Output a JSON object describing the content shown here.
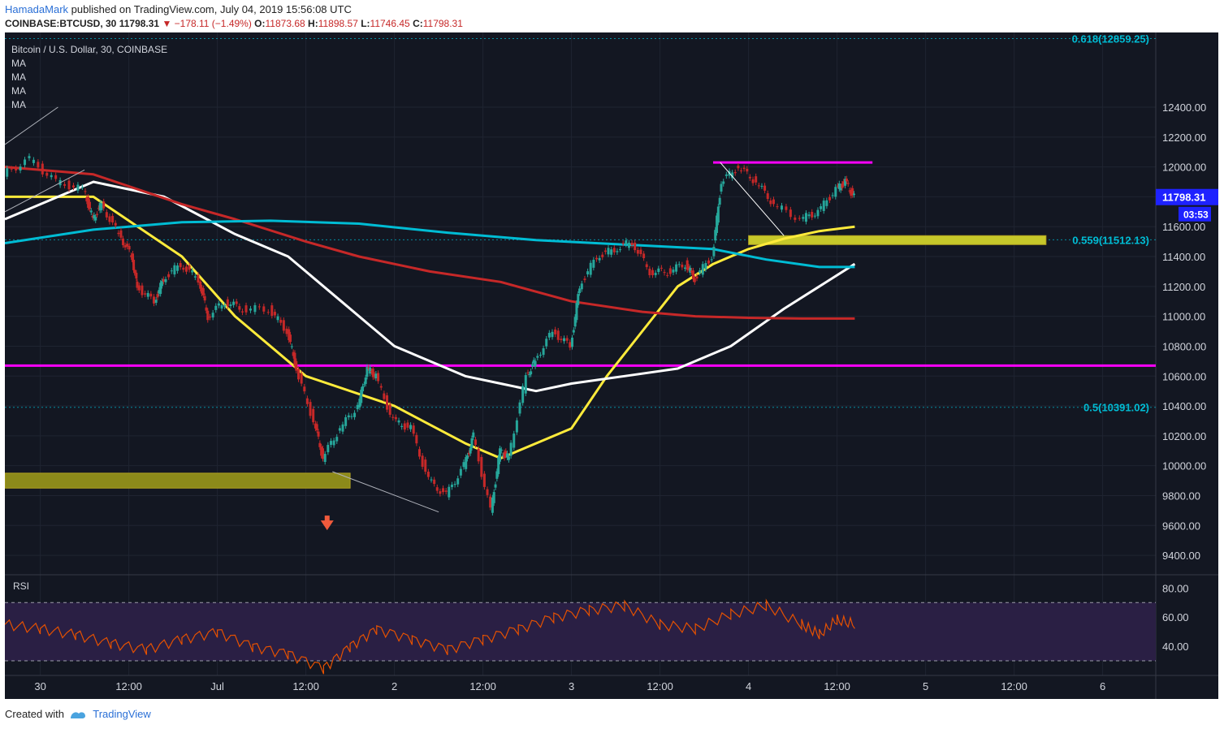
{
  "header": {
    "author": "HamadaMark",
    "published_text": "published on TradingView.com, July 04, 2019 15:56:08 UTC",
    "symbol": "COINBASE:BTCUSD, 30",
    "last": "11798.31",
    "change": "▼ −178.11 (−1.49%)",
    "o_label": "O:",
    "o_value": "11873.68",
    "h_label": "H:",
    "h_value": "11898.57",
    "l_label": "L:",
    "l_value": "11746.45",
    "c_label": "C:",
    "c_value": "11798.31"
  },
  "legend": {
    "title": "Bitcoin / U.S. Dollar, 30, COINBASE",
    "ma_lines": [
      "MA",
      "MA",
      "MA",
      "MA"
    ]
  },
  "footer": {
    "created_with": "Created with",
    "brand": "TradingView"
  },
  "colors": {
    "background": "#131722",
    "up": "#26a69a",
    "down": "#c62828",
    "magenta": "#ff00ff",
    "yellow_box": "#c6c82a",
    "olive_box": "#8c8a1a",
    "ma_yellow": "#ffeb3b",
    "ma_white": "#ffffff",
    "ma_red": "#c62828",
    "ma_cyan": "#00bcd4",
    "rsi_line": "#e65100",
    "rsi_band": "#2a1f44",
    "fib": "#00bcd4"
  },
  "chart_data": {
    "type": "line",
    "title": "Bitcoin / U.S. Dollar, 30, COINBASE",
    "x_ticks": [
      "30",
      "12:00",
      "Jul",
      "12:00",
      "2",
      "12:00",
      "3",
      "12:00",
      "4",
      "12:00",
      "5",
      "12:00",
      "6"
    ],
    "y_ticks": [
      "12400.00",
      "12200.00",
      "12000.00",
      "11800.00",
      "11600.00",
      "11400.00",
      "11200.00",
      "11000.00",
      "10800.00",
      "10600.00",
      "10400.00",
      "10200.00",
      "10000.00",
      "9800.00",
      "9600.00",
      "9400.00"
    ],
    "ylim": [
      9270,
      12900
    ],
    "xlim": [
      0,
      6.5
    ],
    "price_series": {
      "name": "BTCUSD",
      "points": [
        [
          0.0,
          11950
        ],
        [
          0.15,
          12050
        ],
        [
          0.3,
          11900
        ],
        [
          0.45,
          11850
        ],
        [
          0.5,
          11650
        ],
        [
          0.55,
          11750
        ],
        [
          0.65,
          11550
        ],
        [
          0.72,
          11400
        ],
        [
          0.75,
          11200
        ],
        [
          0.85,
          11100
        ],
        [
          0.9,
          11250
        ],
        [
          1.0,
          11350
        ],
        [
          1.1,
          11250
        ],
        [
          1.15,
          11000
        ],
        [
          1.25,
          11100
        ],
        [
          1.35,
          11050
        ],
        [
          1.5,
          11050
        ],
        [
          1.6,
          10900
        ],
        [
          1.65,
          10650
        ],
        [
          1.75,
          10300
        ],
        [
          1.8,
          10050
        ],
        [
          1.9,
          10250
        ],
        [
          2.0,
          10400
        ],
        [
          2.05,
          10650
        ],
        [
          2.1,
          10600
        ],
        [
          2.2,
          10300
        ],
        [
          2.3,
          10250
        ],
        [
          2.4,
          9900
        ],
        [
          2.5,
          9800
        ],
        [
          2.6,
          10000
        ],
        [
          2.65,
          10200
        ],
        [
          2.75,
          9700
        ],
        [
          2.8,
          10100
        ],
        [
          2.85,
          10050
        ],
        [
          2.95,
          10600
        ],
        [
          3.0,
          10700
        ],
        [
          3.1,
          10900
        ],
        [
          3.2,
          10800
        ],
        [
          3.25,
          11200
        ],
        [
          3.35,
          11400
        ],
        [
          3.45,
          11450
        ],
        [
          3.55,
          11500
        ],
        [
          3.65,
          11300
        ],
        [
          3.75,
          11300
        ],
        [
          3.85,
          11350
        ],
        [
          3.9,
          11250
        ],
        [
          4.0,
          11400
        ],
        [
          4.05,
          11900
        ],
        [
          4.15,
          12000
        ],
        [
          4.25,
          11900
        ],
        [
          4.35,
          11750
        ],
        [
          4.5,
          11650
        ],
        [
          4.6,
          11700
        ],
        [
          4.7,
          11850
        ],
        [
          4.75,
          11900
        ],
        [
          4.8,
          11798.31
        ]
      ]
    },
    "series": [
      {
        "name": "MA",
        "color": "#ffeb3b",
        "points": [
          [
            0,
            11800
          ],
          [
            0.5,
            11800
          ],
          [
            1.0,
            11400
          ],
          [
            1.3,
            11000
          ],
          [
            1.7,
            10600
          ],
          [
            2.2,
            10400
          ],
          [
            2.6,
            10150
          ],
          [
            2.8,
            10050
          ],
          [
            3.0,
            10150
          ],
          [
            3.2,
            10250
          ],
          [
            3.4,
            10600
          ],
          [
            3.6,
            10900
          ],
          [
            3.8,
            11200
          ],
          [
            4.0,
            11350
          ],
          [
            4.2,
            11450
          ],
          [
            4.4,
            11520
          ],
          [
            4.6,
            11570
          ],
          [
            4.8,
            11600
          ]
        ]
      },
      {
        "name": "MA",
        "color": "#ffffff",
        "points": [
          [
            0,
            11650
          ],
          [
            0.5,
            11900
          ],
          [
            0.9,
            11800
          ],
          [
            1.3,
            11550
          ],
          [
            1.6,
            11400
          ],
          [
            1.9,
            11100
          ],
          [
            2.2,
            10800
          ],
          [
            2.6,
            10600
          ],
          [
            2.8,
            10550
          ],
          [
            3.0,
            10500
          ],
          [
            3.2,
            10550
          ],
          [
            3.5,
            10600
          ],
          [
            3.8,
            10650
          ],
          [
            4.1,
            10800
          ],
          [
            4.4,
            11050
          ],
          [
            4.6,
            11200
          ],
          [
            4.8,
            11350
          ]
        ]
      },
      {
        "name": "MA",
        "color": "#c62828",
        "points": [
          [
            0,
            12000
          ],
          [
            0.5,
            11950
          ],
          [
            1.0,
            11750
          ],
          [
            1.3,
            11650
          ],
          [
            1.7,
            11500
          ],
          [
            2.0,
            11400
          ],
          [
            2.4,
            11300
          ],
          [
            2.8,
            11230
          ],
          [
            3.2,
            11100
          ],
          [
            3.6,
            11030
          ],
          [
            3.9,
            11000
          ],
          [
            4.2,
            10990
          ],
          [
            4.5,
            10985
          ],
          [
            4.8,
            10985
          ]
        ]
      },
      {
        "name": "MA",
        "color": "#00bcd4",
        "points": [
          [
            0,
            11490
          ],
          [
            0.5,
            11580
          ],
          [
            1.0,
            11630
          ],
          [
            1.5,
            11640
          ],
          [
            2.0,
            11620
          ],
          [
            2.5,
            11560
          ],
          [
            3.0,
            11510
          ],
          [
            3.5,
            11480
          ],
          [
            4.0,
            11450
          ],
          [
            4.3,
            11380
          ],
          [
            4.6,
            11330
          ],
          [
            4.8,
            11330
          ]
        ]
      }
    ],
    "horizontal_lines": [
      {
        "price": 10670,
        "color": "#ff00ff"
      },
      {
        "price": 12030,
        "color": "#ff00ff",
        "x_start": 4.0,
        "x_end": 4.9
      }
    ],
    "zones": [
      {
        "x_start": 0.0,
        "x_end": 1.95,
        "y_low": 9850,
        "y_high": 9950,
        "color": "#8c8a1a"
      },
      {
        "x_start": 4.2,
        "x_end": 5.88,
        "y_low": 11480,
        "y_high": 11540,
        "color": "#c6c82a"
      }
    ],
    "fib_levels": [
      {
        "label": "0.618(12859.25)",
        "price": 12859.25
      },
      {
        "label": "0.559(11512.13)",
        "price": 11512.13
      },
      {
        "label": "0.5(10391.02)",
        "price": 10391.02
      }
    ],
    "last_price_label": "11798.31",
    "countdown_label": "03:53",
    "rsi": {
      "name": "RSI",
      "y_ticks": [
        "80.00",
        "60.00",
        "40.00"
      ],
      "ylim": [
        20,
        88
      ],
      "levels": [
        70,
        30
      ],
      "points": [
        [
          0,
          55
        ],
        [
          0.2,
          52
        ],
        [
          0.4,
          48
        ],
        [
          0.6,
          42
        ],
        [
          0.8,
          38
        ],
        [
          1.0,
          45
        ],
        [
          1.2,
          50
        ],
        [
          1.4,
          40
        ],
        [
          1.6,
          35
        ],
        [
          1.8,
          25
        ],
        [
          1.95,
          40
        ],
        [
          2.1,
          52
        ],
        [
          2.3,
          45
        ],
        [
          2.5,
          38
        ],
        [
          2.7,
          45
        ],
        [
          2.9,
          52
        ],
        [
          3.1,
          60
        ],
        [
          3.3,
          65
        ],
        [
          3.5,
          68
        ],
        [
          3.7,
          55
        ],
        [
          3.9,
          52
        ],
        [
          4.1,
          62
        ],
        [
          4.3,
          68
        ],
        [
          4.5,
          55
        ],
        [
          4.6,
          48
        ],
        [
          4.7,
          58
        ],
        [
          4.8,
          55
        ]
      ]
    }
  }
}
